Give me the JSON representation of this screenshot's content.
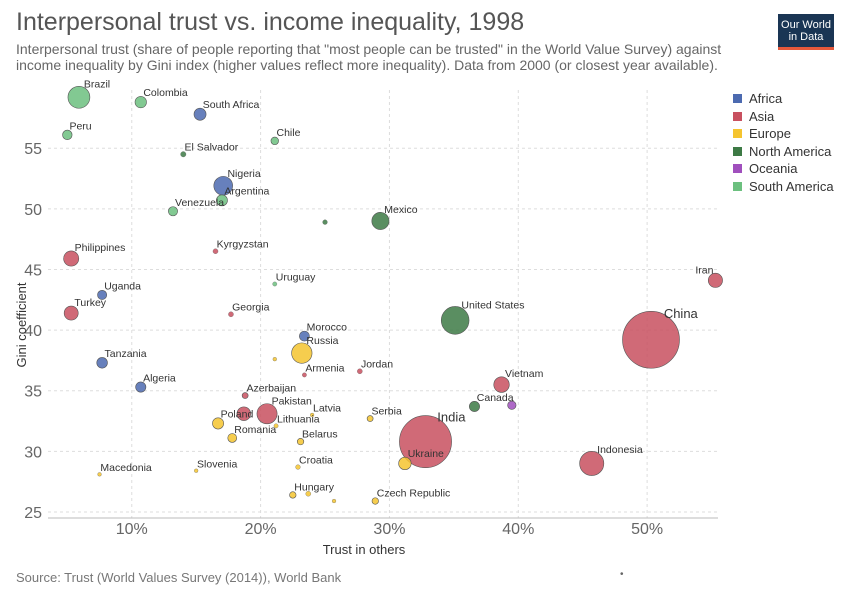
{
  "header": {
    "title": "Interpersonal trust vs. income inequality, 1998",
    "subtitle": "Interpersonal trust (share of people reporting that \"most people can be trusted\" in the World Value Survey) against income inequality by Gini index (higher values reflect more inequality). Data from 2000 (or closest year available).",
    "logo_line1": "Our World",
    "logo_line2": "in Data"
  },
  "footer": {
    "source": "Source: Trust (World Values Survey (2014)), World Bank",
    "dot": "•"
  },
  "legend": [
    {
      "name": "Africa",
      "color": "#4c6ab0"
    },
    {
      "name": "Asia",
      "color": "#c8505f"
    },
    {
      "name": "Europe",
      "color": "#f5c42f"
    },
    {
      "name": "North America",
      "color": "#3d7a45"
    },
    {
      "name": "Oceania",
      "color": "#a04fbd"
    },
    {
      "name": "South America",
      "color": "#6cc07f"
    }
  ],
  "chart_data": {
    "type": "scatter",
    "xlabel": "Trust in others",
    "ylabel": "Gini coefficient",
    "xlim": [
      0.035,
      0.555
    ],
    "ylim": [
      24.5,
      59.8
    ],
    "xticks": [
      {
        "v": 0.1,
        "label": "10%"
      },
      {
        "v": 0.2,
        "label": "20%"
      },
      {
        "v": 0.3,
        "label": "30%"
      },
      {
        "v": 0.4,
        "label": "40%"
      },
      {
        "v": 0.5,
        "label": "50%"
      }
    ],
    "yticks": [
      {
        "v": 25,
        "label": "25"
      },
      {
        "v": 30,
        "label": "30"
      },
      {
        "v": 35,
        "label": "35"
      },
      {
        "v": 40,
        "label": "40"
      },
      {
        "v": 45,
        "label": "45"
      },
      {
        "v": 50,
        "label": "50"
      },
      {
        "v": 55,
        "label": "55"
      }
    ],
    "grid": true,
    "legend_position": "right",
    "size_note": "bubble size reflects population",
    "points": [
      {
        "name": "Brazil",
        "continent": "South America",
        "x": 0.059,
        "y": 59.2,
        "pop": 170
      },
      {
        "name": "Colombia",
        "continent": "South America",
        "x": 0.107,
        "y": 58.8,
        "pop": 40
      },
      {
        "name": "South Africa",
        "continent": "Africa",
        "x": 0.153,
        "y": 57.8,
        "pop": 45
      },
      {
        "name": "Peru",
        "continent": "South America",
        "x": 0.05,
        "y": 56.1,
        "pop": 26
      },
      {
        "name": "Chile",
        "continent": "South America",
        "x": 0.211,
        "y": 55.6,
        "pop": 15
      },
      {
        "name": "El Salvador",
        "continent": "North America",
        "x": 0.14,
        "y": 54.5,
        "pop": 6
      },
      {
        "name": "Nigeria",
        "continent": "Africa",
        "x": 0.171,
        "y": 51.9,
        "pop": 122
      },
      {
        "name": "Argentina",
        "continent": "South America",
        "x": 0.17,
        "y": 50.7,
        "pop": 37
      },
      {
        "name": "Venezuela",
        "continent": "South America",
        "x": 0.132,
        "y": 49.8,
        "pop": 24
      },
      {
        "name": "",
        "continent": "North America",
        "x": 0.25,
        "y": 48.9,
        "pop": 4
      },
      {
        "name": "Mexico",
        "continent": "North America",
        "x": 0.293,
        "y": 49.0,
        "pop": 100
      },
      {
        "name": "Kyrgyzstan",
        "continent": "Asia",
        "x": 0.165,
        "y": 46.5,
        "pop": 5
      },
      {
        "name": "Philippines",
        "continent": "Asia",
        "x": 0.053,
        "y": 45.9,
        "pop": 76
      },
      {
        "name": "Iran",
        "continent": "Asia",
        "x": 0.553,
        "y": 44.1,
        "pop": 66
      },
      {
        "name": "Uruguay",
        "continent": "South America",
        "x": 0.211,
        "y": 43.8,
        "pop": 3
      },
      {
        "name": "Uganda",
        "continent": "Africa",
        "x": 0.077,
        "y": 42.9,
        "pop": 24
      },
      {
        "name": "Turkey",
        "continent": "Asia",
        "x": 0.053,
        "y": 41.4,
        "pop": 64
      },
      {
        "name": "Georgia",
        "continent": "Asia",
        "x": 0.177,
        "y": 41.3,
        "pop": 5
      },
      {
        "name": "United States",
        "continent": "North America",
        "x": 0.351,
        "y": 40.8,
        "pop": 282
      },
      {
        "name": "China",
        "continent": "Asia",
        "x": 0.503,
        "y": 39.2,
        "pop": 1260
      },
      {
        "name": "Morocco",
        "continent": "Africa",
        "x": 0.234,
        "y": 39.5,
        "pop": 29
      },
      {
        "name": "Russia",
        "continent": "Europe",
        "x": 0.232,
        "y": 38.1,
        "pop": 146
      },
      {
        "name": "",
        "continent": "Europe",
        "x": 0.211,
        "y": 37.6,
        "pop": 2
      },
      {
        "name": "Tanzania",
        "continent": "Africa",
        "x": 0.077,
        "y": 37.3,
        "pop": 34
      },
      {
        "name": "Armenia",
        "continent": "Asia",
        "x": 0.234,
        "y": 36.3,
        "pop": 3
      },
      {
        "name": "Jordan",
        "continent": "Asia",
        "x": 0.277,
        "y": 36.6,
        "pop": 5
      },
      {
        "name": "Vietnam",
        "continent": "Asia",
        "x": 0.387,
        "y": 35.5,
        "pop": 80
      },
      {
        "name": "Algeria",
        "continent": "Africa",
        "x": 0.107,
        "y": 35.3,
        "pop": 31
      },
      {
        "name": "Azerbaijan",
        "continent": "Asia",
        "x": 0.188,
        "y": 34.6,
        "pop": 8
      },
      {
        "name": "Canada",
        "continent": "North America",
        "x": 0.366,
        "y": 33.7,
        "pop": 31
      },
      {
        "name": "",
        "continent": "Oceania",
        "x": 0.395,
        "y": 33.8,
        "pop": 19
      },
      {
        "name": "Pakistan",
        "continent": "Asia",
        "x": 0.205,
        "y": 33.1,
        "pop": 142
      },
      {
        "name": "",
        "continent": "Asia",
        "x": 0.187,
        "y": 33.1,
        "pop": 60
      },
      {
        "name": "Latvia",
        "continent": "Europe",
        "x": 0.24,
        "y": 33.0,
        "pop": 2
      },
      {
        "name": "Serbia",
        "continent": "Europe",
        "x": 0.285,
        "y": 32.7,
        "pop": 8
      },
      {
        "name": "Poland",
        "continent": "Europe",
        "x": 0.167,
        "y": 32.3,
        "pop": 38
      },
      {
        "name": "Lithuania",
        "continent": "Europe",
        "x": 0.212,
        "y": 32.1,
        "pop": 3
      },
      {
        "name": "Romania",
        "continent": "Europe",
        "x": 0.178,
        "y": 31.1,
        "pop": 22
      },
      {
        "name": "Belarus",
        "continent": "Europe",
        "x": 0.231,
        "y": 30.8,
        "pop": 10
      },
      {
        "name": "India",
        "continent": "Asia",
        "x": 0.328,
        "y": 30.8,
        "pop": 1050
      },
      {
        "name": "Indonesia",
        "continent": "Asia",
        "x": 0.457,
        "y": 29.0,
        "pop": 210
      },
      {
        "name": "Ukraine",
        "continent": "Europe",
        "x": 0.312,
        "y": 29.0,
        "pop": 49
      },
      {
        "name": "Slovenia",
        "continent": "Europe",
        "x": 0.15,
        "y": 28.4,
        "pop": 2
      },
      {
        "name": "Croatia",
        "continent": "Europe",
        "x": 0.229,
        "y": 28.7,
        "pop": 4
      },
      {
        "name": "Macedonia",
        "continent": "Europe",
        "x": 0.075,
        "y": 28.1,
        "pop": 2
      },
      {
        "name": "Hungary",
        "continent": "Europe",
        "x": 0.225,
        "y": 26.4,
        "pop": 10
      },
      {
        "name": "",
        "continent": "Europe",
        "x": 0.237,
        "y": 26.5,
        "pop": 5
      },
      {
        "name": "",
        "continent": "Europe",
        "x": 0.257,
        "y": 25.9,
        "pop": 2
      },
      {
        "name": "Czech Republic",
        "continent": "Europe",
        "x": 0.289,
        "y": 25.9,
        "pop": 10
      }
    ]
  }
}
